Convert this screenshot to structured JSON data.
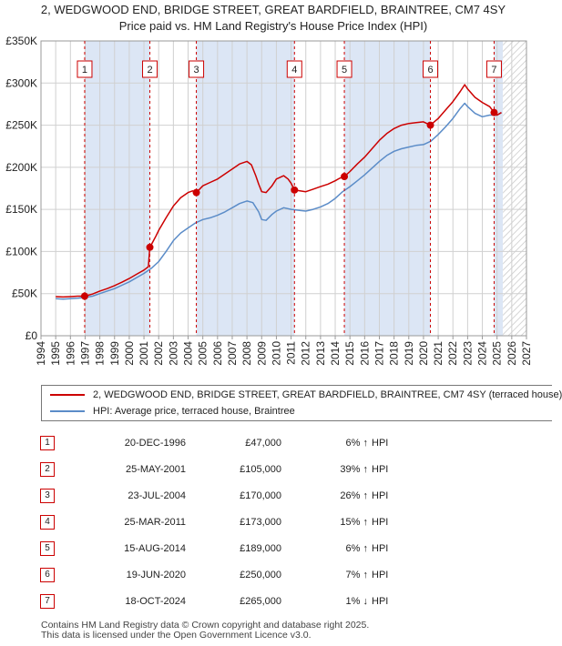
{
  "title_line1": "2, WEDGWOOD END, BRIDGE STREET, GREAT BARDFIELD, BRAINTREE, CM7 4SY",
  "title_line2": "Price paid vs. HM Land Registry's House Price Index (HPI)",
  "chart_data": {
    "type": "line",
    "xlim": [
      1994,
      2027
    ],
    "ylim": [
      0,
      350000
    ],
    "y_ticks": [
      0,
      50000,
      100000,
      150000,
      200000,
      250000,
      300000,
      350000
    ],
    "y_tick_labels": [
      "£0",
      "£50K",
      "£100K",
      "£150K",
      "£200K",
      "£250K",
      "£300K",
      "£350K"
    ],
    "x_ticks": [
      "1994",
      "1995",
      "1996",
      "1997",
      "1998",
      "1999",
      "2000",
      "2001",
      "2002",
      "2003",
      "2004",
      "2005",
      "2006",
      "2007",
      "2008",
      "2009",
      "2010",
      "2011",
      "2012",
      "2013",
      "2014",
      "2015",
      "2016",
      "2017",
      "2018",
      "2019",
      "2020",
      "2021",
      "2022",
      "2023",
      "2024",
      "2025",
      "2026",
      "2027"
    ],
    "grid": true,
    "colors": {
      "property": "#cc0000",
      "hpi": "#5b8cc8",
      "band": "#dce6f5",
      "grid": "#d0d0d0"
    },
    "shaded_periods": [
      [
        1996.97,
        2001.4
      ],
      [
        2004.56,
        2011.23
      ],
      [
        2014.62,
        2020.47
      ],
      [
        2024.8,
        2025.4
      ]
    ],
    "hatched_from": 2025.4,
    "hpi_series": {
      "name": "HPI: Average price, terraced house, Braintree",
      "x": [
        1995.0,
        1995.5,
        1996.0,
        1996.5,
        1997.0,
        1997.5,
        1998.0,
        1998.5,
        1999.0,
        1999.5,
        2000.0,
        2000.5,
        2001.0,
        2001.5,
        2002.0,
        2002.5,
        2003.0,
        2003.5,
        2004.0,
        2004.5,
        2005.0,
        2005.5,
        2006.0,
        2006.5,
        2007.0,
        2007.5,
        2008.0,
        2008.4,
        2008.8,
        2009.0,
        2009.3,
        2009.7,
        2010.0,
        2010.5,
        2011.0,
        2011.5,
        2012.0,
        2012.5,
        2013.0,
        2013.5,
        2014.0,
        2014.5,
        2015.0,
        2015.5,
        2016.0,
        2016.5,
        2017.0,
        2017.5,
        2018.0,
        2018.5,
        2019.0,
        2019.5,
        2020.0,
        2020.5,
        2021.0,
        2021.5,
        2022.0,
        2022.5,
        2022.8,
        2023.0,
        2023.5,
        2024.0,
        2024.5,
        2025.0,
        2025.3
      ],
      "y": [
        44000,
        43500,
        44000,
        44500,
        45500,
        47000,
        50000,
        53000,
        56000,
        60000,
        64000,
        69000,
        74000,
        80000,
        88000,
        100000,
        113000,
        122000,
        128000,
        134000,
        138000,
        140000,
        143000,
        147000,
        152000,
        157000,
        160000,
        158000,
        147000,
        138000,
        137000,
        144000,
        148000,
        152000,
        150000,
        149000,
        148000,
        150000,
        153000,
        157000,
        163000,
        171000,
        177000,
        184000,
        191000,
        199000,
        207000,
        214000,
        219000,
        222000,
        224000,
        226000,
        227000,
        231000,
        239000,
        248000,
        258000,
        270000,
        276000,
        272000,
        264000,
        260000,
        262000,
        262000,
        265000
      ]
    },
    "property_series": {
      "name": "2, WEDGWOOD END, BRIDGE STREET, GREAT BARDFIELD, BRAINTREE, CM7 4SY (terraced house)",
      "x": [
        1995.0,
        1995.5,
        1996.0,
        1996.5,
        1996.97,
        1997.5,
        1998.0,
        1998.5,
        1999.0,
        1999.5,
        2000.0,
        2000.5,
        2001.0,
        2001.3,
        2001.4,
        2001.5,
        2001.8,
        2002.0,
        2002.5,
        2003.0,
        2003.5,
        2004.0,
        2004.3,
        2004.56,
        2005.0,
        2005.5,
        2006.0,
        2006.5,
        2007.0,
        2007.5,
        2008.0,
        2008.3,
        2008.6,
        2008.8,
        2009.0,
        2009.3,
        2009.7,
        2010.0,
        2010.5,
        2010.8,
        2011.0,
        2011.23,
        2011.6,
        2012.0,
        2012.5,
        2013.0,
        2013.5,
        2014.0,
        2014.3,
        2014.62,
        2015.0,
        2015.5,
        2016.0,
        2016.5,
        2017.0,
        2017.5,
        2018.0,
        2018.5,
        2019.0,
        2019.5,
        2020.0,
        2020.47,
        2021.0,
        2021.5,
        2022.0,
        2022.5,
        2022.8,
        2023.0,
        2023.5,
        2024.0,
        2024.5,
        2024.8,
        2025.0,
        2025.3
      ],
      "y": [
        46500,
        46000,
        46500,
        47000,
        47000,
        49500,
        53000,
        56000,
        59500,
        63500,
        68000,
        73000,
        78000,
        82000,
        105000,
        108000,
        118000,
        125000,
        140000,
        154000,
        164000,
        170000,
        172000,
        170000,
        178000,
        182000,
        186000,
        192000,
        198000,
        204000,
        207000,
        203000,
        190000,
        180000,
        171000,
        170000,
        178000,
        186000,
        190000,
        186000,
        181000,
        173000,
        172000,
        171000,
        174000,
        177000,
        180000,
        184000,
        187000,
        189000,
        195000,
        204000,
        212000,
        222000,
        232000,
        240000,
        246000,
        250000,
        252000,
        253000,
        254000,
        250000,
        258000,
        268000,
        278000,
        290000,
        298000,
        293000,
        283000,
        277000,
        272000,
        265000,
        262000,
        265000
      ]
    },
    "sales": [
      {
        "n": "1",
        "x": 1996.97,
        "price": 47000
      },
      {
        "n": "2",
        "x": 2001.4,
        "price": 105000
      },
      {
        "n": "3",
        "x": 2004.56,
        "price": 170000
      },
      {
        "n": "4",
        "x": 2011.23,
        "price": 173000
      },
      {
        "n": "5",
        "x": 2014.62,
        "price": 189000
      },
      {
        "n": "6",
        "x": 2020.47,
        "price": 250000
      },
      {
        "n": "7",
        "x": 2024.8,
        "price": 265000
      }
    ]
  },
  "legend": {
    "property_label": "2, WEDGWOOD END, BRIDGE STREET, GREAT BARDFIELD, BRAINTREE, CM7 4SY (terraced house)",
    "hpi_label": "HPI: Average price, terraced house, Braintree"
  },
  "transactions": [
    {
      "n": "1",
      "date": "20-DEC-1996",
      "price": "£47,000",
      "pct": "6% ↑",
      "hpi": "HPI"
    },
    {
      "n": "2",
      "date": "25-MAY-2001",
      "price": "£105,000",
      "pct": "39% ↑",
      "hpi": "HPI"
    },
    {
      "n": "3",
      "date": "23-JUL-2004",
      "price": "£170,000",
      "pct": "26% ↑",
      "hpi": "HPI"
    },
    {
      "n": "4",
      "date": "25-MAR-2011",
      "price": "£173,000",
      "pct": "15% ↑",
      "hpi": "HPI"
    },
    {
      "n": "5",
      "date": "15-AUG-2014",
      "price": "£189,000",
      "pct": "6% ↑",
      "hpi": "HPI"
    },
    {
      "n": "6",
      "date": "19-JUN-2020",
      "price": "£250,000",
      "pct": "7% ↑",
      "hpi": "HPI"
    },
    {
      "n": "7",
      "date": "18-OCT-2024",
      "price": "£265,000",
      "pct": "1% ↓",
      "hpi": "HPI"
    }
  ],
  "footer_line1": "Contains HM Land Registry data © Crown copyright and database right 2025.",
  "footer_line2": "This data is licensed under the Open Government Licence v3.0."
}
